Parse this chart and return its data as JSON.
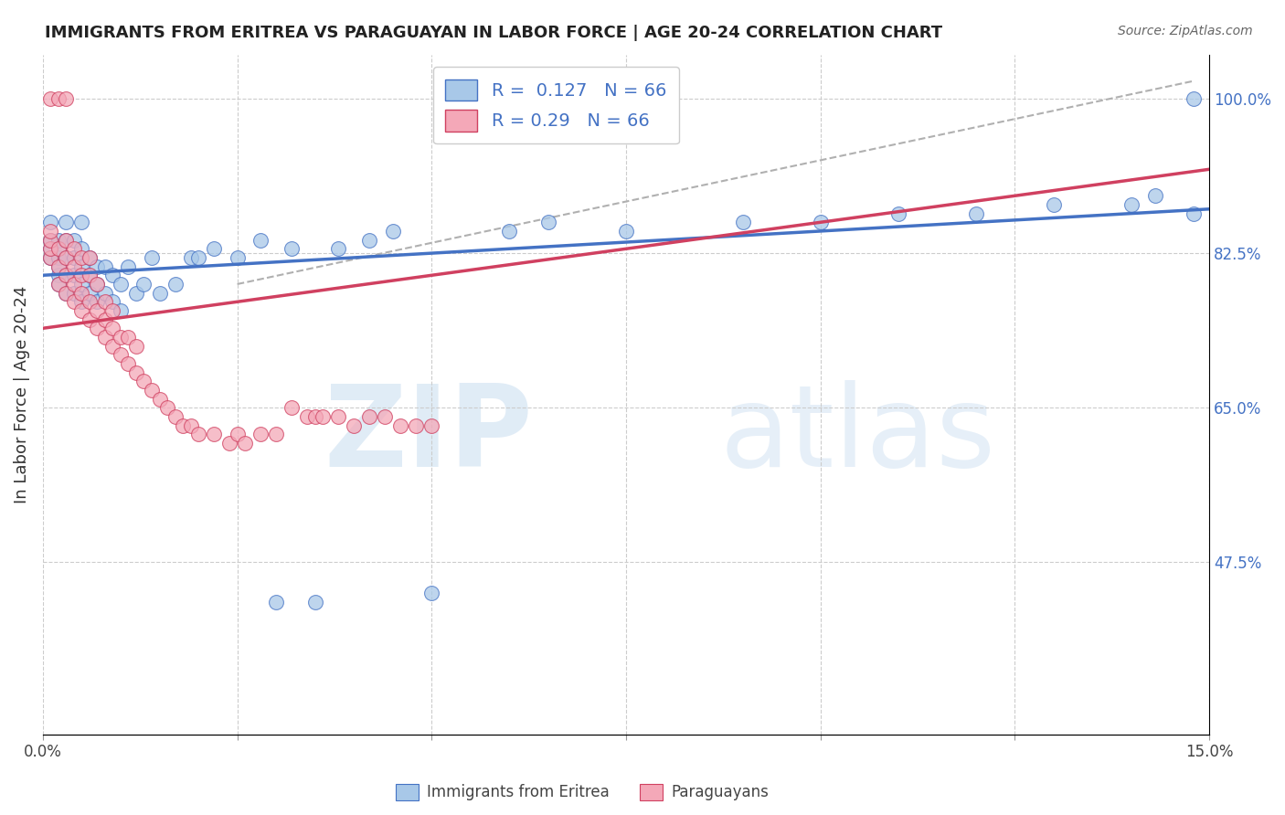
{
  "title": "IMMIGRANTS FROM ERITREA VS PARAGUAYAN IN LABOR FORCE | AGE 20-24 CORRELATION CHART",
  "source": "Source: ZipAtlas.com",
  "ylabel": "In Labor Force | Age 20-24",
  "xlim": [
    0.0,
    0.15
  ],
  "ylim": [
    0.28,
    1.05
  ],
  "xticks": [
    0.0,
    0.025,
    0.05,
    0.075,
    0.1,
    0.125,
    0.15
  ],
  "xticklabels": [
    "0.0%",
    "",
    "",
    "",
    "",
    "",
    "15.0%"
  ],
  "yticks_right": [
    0.475,
    0.65,
    0.825,
    1.0
  ],
  "yticklabels_right": [
    "47.5%",
    "65.0%",
    "82.5%",
    "100.0%"
  ],
  "R_blue": 0.127,
  "N_blue": 66,
  "R_pink": 0.29,
  "N_pink": 66,
  "blue_color": "#a8c8e8",
  "pink_color": "#f4a8b8",
  "trend_blue": "#4472c4",
  "trend_pink": "#d04060",
  "trend_gray": "#b0b0b0",
  "watermark_zip": "ZIP",
  "watermark_atlas": "atlas",
  "legend_labels": [
    "Immigrants from Eritrea",
    "Paraguayans"
  ],
  "blue_scatter_x": [
    0.001,
    0.001,
    0.001,
    0.001,
    0.002,
    0.002,
    0.002,
    0.002,
    0.002,
    0.002,
    0.003,
    0.003,
    0.003,
    0.003,
    0.003,
    0.004,
    0.004,
    0.004,
    0.004,
    0.005,
    0.005,
    0.005,
    0.005,
    0.005,
    0.006,
    0.006,
    0.006,
    0.007,
    0.007,
    0.007,
    0.008,
    0.008,
    0.009,
    0.009,
    0.01,
    0.01,
    0.011,
    0.012,
    0.013,
    0.014,
    0.015,
    0.017,
    0.019,
    0.02,
    0.022,
    0.025,
    0.028,
    0.03,
    0.032,
    0.035,
    0.038,
    0.042,
    0.045,
    0.05,
    0.06,
    0.065,
    0.075,
    0.09,
    0.1,
    0.11,
    0.12,
    0.13,
    0.14,
    0.143,
    0.148,
    0.148
  ],
  "blue_scatter_y": [
    0.82,
    0.83,
    0.84,
    0.86,
    0.8,
    0.82,
    0.84,
    0.79,
    0.81,
    0.83,
    0.78,
    0.8,
    0.82,
    0.84,
    0.86,
    0.78,
    0.8,
    0.82,
    0.84,
    0.77,
    0.79,
    0.81,
    0.83,
    0.86,
    0.78,
    0.8,
    0.82,
    0.77,
    0.79,
    0.81,
    0.78,
    0.81,
    0.77,
    0.8,
    0.76,
    0.79,
    0.81,
    0.78,
    0.79,
    0.82,
    0.78,
    0.79,
    0.82,
    0.82,
    0.83,
    0.82,
    0.84,
    0.43,
    0.83,
    0.43,
    0.83,
    0.84,
    0.85,
    0.44,
    0.85,
    0.86,
    0.85,
    0.86,
    0.86,
    0.87,
    0.87,
    0.88,
    0.88,
    0.89,
    0.87,
    1.0
  ],
  "pink_scatter_x": [
    0.001,
    0.001,
    0.001,
    0.001,
    0.001,
    0.002,
    0.002,
    0.002,
    0.002,
    0.003,
    0.003,
    0.003,
    0.003,
    0.003,
    0.004,
    0.004,
    0.004,
    0.004,
    0.005,
    0.005,
    0.005,
    0.005,
    0.006,
    0.006,
    0.006,
    0.006,
    0.007,
    0.007,
    0.007,
    0.008,
    0.008,
    0.008,
    0.009,
    0.009,
    0.009,
    0.01,
    0.01,
    0.011,
    0.011,
    0.012,
    0.012,
    0.013,
    0.014,
    0.015,
    0.016,
    0.017,
    0.018,
    0.019,
    0.02,
    0.022,
    0.024,
    0.025,
    0.026,
    0.028,
    0.03,
    0.032,
    0.034,
    0.035,
    0.036,
    0.038,
    0.04,
    0.042,
    0.044,
    0.046,
    0.048,
    0.05
  ],
  "pink_scatter_y": [
    0.82,
    0.83,
    0.84,
    0.85,
    1.0,
    0.79,
    0.81,
    0.83,
    1.0,
    0.78,
    0.8,
    0.82,
    0.84,
    1.0,
    0.77,
    0.79,
    0.81,
    0.83,
    0.76,
    0.78,
    0.8,
    0.82,
    0.75,
    0.77,
    0.8,
    0.82,
    0.74,
    0.76,
    0.79,
    0.73,
    0.75,
    0.77,
    0.72,
    0.74,
    0.76,
    0.71,
    0.73,
    0.7,
    0.73,
    0.69,
    0.72,
    0.68,
    0.67,
    0.66,
    0.65,
    0.64,
    0.63,
    0.63,
    0.62,
    0.62,
    0.61,
    0.62,
    0.61,
    0.62,
    0.62,
    0.65,
    0.64,
    0.64,
    0.64,
    0.64,
    0.63,
    0.64,
    0.64,
    0.63,
    0.63,
    0.63
  ]
}
